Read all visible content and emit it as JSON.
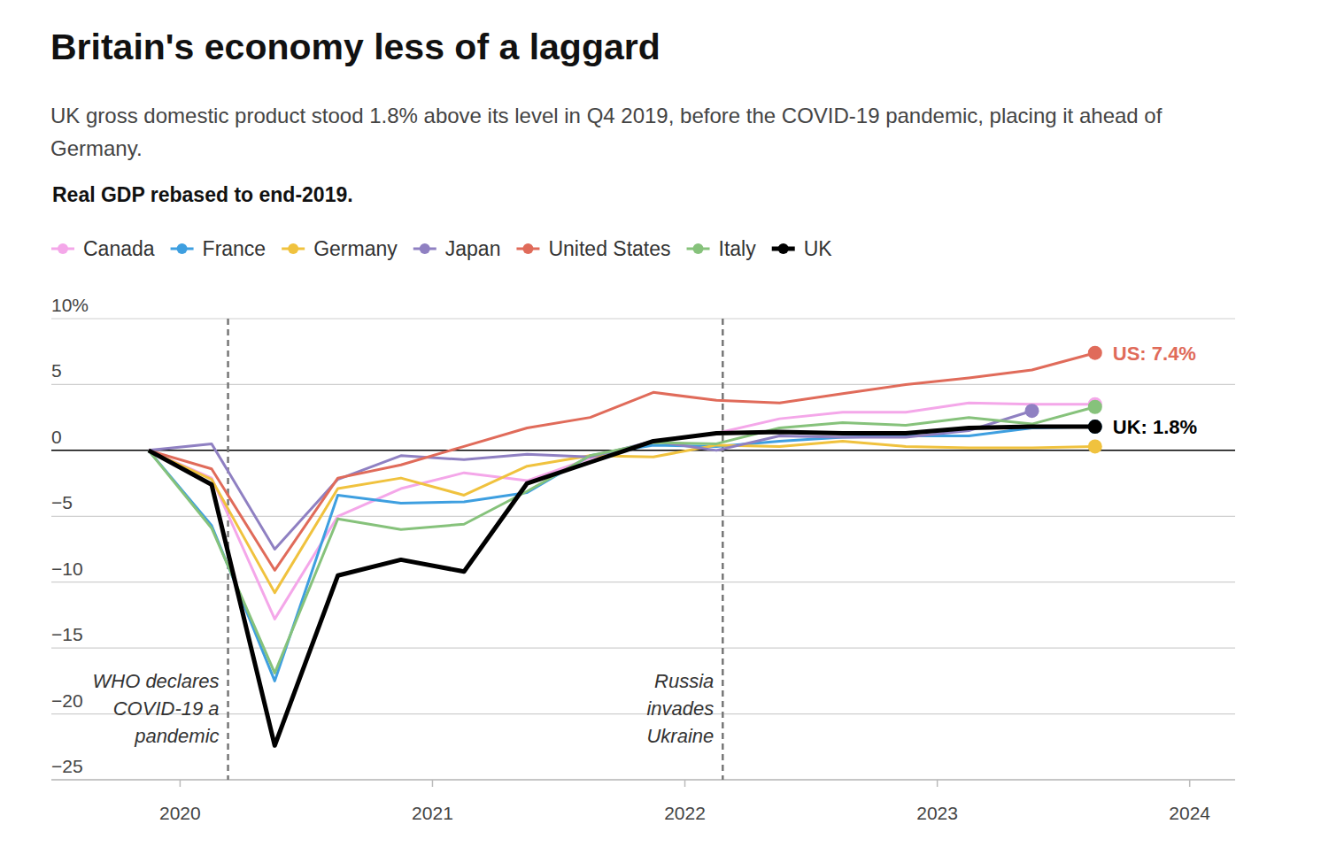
{
  "chart_data": {
    "type": "line",
    "title": "Britain's economy less of a laggard",
    "subtitle": "UK gross domestic product stood 1.8% above its level in Q4 2019, before the COVID-19 pandemic, placing it ahead of Germany.",
    "y_label": "Real GDP rebased to end-2019.",
    "x": [
      2019.875,
      2020.125,
      2020.375,
      2020.625,
      2020.875,
      2021.125,
      2021.375,
      2021.625,
      2021.875,
      2022.125,
      2022.375,
      2022.625,
      2022.875,
      2023.125,
      2023.375,
      2023.625
    ],
    "xlim": [
      2019.49,
      2024.18
    ],
    "xticks": [
      2020,
      2021,
      2022,
      2023,
      2024
    ],
    "ylim": [
      -25,
      10
    ],
    "yticks": [
      {
        "value": -25,
        "label": "−25"
      },
      {
        "value": -20,
        "label": "−20"
      },
      {
        "value": -15,
        "label": "−15"
      },
      {
        "value": -10,
        "label": "−10"
      },
      {
        "value": -5,
        "label": "−5"
      },
      0,
      5,
      {
        "value": 10,
        "label": "10%"
      }
    ],
    "grid": true,
    "legend": "top-left",
    "series": [
      {
        "name": "Canada",
        "color": "#f4a7e9",
        "line_style": "solid",
        "values": [
          0,
          -2.1,
          -12.8,
          -5.0,
          -2.9,
          -1.7,
          -2.3,
          -0.6,
          0.7,
          1.3,
          2.4,
          2.9,
          2.9,
          3.6,
          3.5,
          3.5
        ]
      },
      {
        "name": "France",
        "color": "#3e9fe0",
        "line_style": "solid",
        "values": [
          0,
          -5.7,
          -17.5,
          -3.4,
          -4.0,
          -3.9,
          -3.2,
          -0.4,
          0.4,
          0.3,
          0.7,
          1.0,
          1.1,
          1.1,
          1.7,
          1.8
        ]
      },
      {
        "name": "Germany",
        "color": "#f0c23e",
        "line_style": "solid",
        "values": [
          0,
          -2.2,
          -10.8,
          -2.9,
          -2.1,
          -3.4,
          -1.2,
          -0.4,
          -0.5,
          0.4,
          0.3,
          0.7,
          0.3,
          0.2,
          0.2,
          0.3
        ]
      },
      {
        "name": "Japan",
        "color": "#8f80c2",
        "line_style": "solid",
        "values": [
          0,
          0.5,
          -7.5,
          -2.2,
          -0.4,
          -0.7,
          -0.3,
          -0.5,
          0.7,
          0.0,
          1.1,
          1.0,
          1.0,
          1.5,
          3.0,
          null
        ]
      },
      {
        "name": "United States",
        "color": "#e06b5a",
        "line_style": "solid",
        "values": [
          0,
          -1.4,
          -9.1,
          -2.1,
          -1.1,
          0.3,
          1.7,
          2.5,
          4.4,
          3.8,
          3.6,
          4.3,
          5.0,
          5.5,
          6.1,
          7.4
        ],
        "value_labels": [
          null,
          null,
          null,
          null,
          null,
          null,
          null,
          null,
          null,
          null,
          null,
          null,
          null,
          null,
          null,
          "US: 7.4%"
        ]
      },
      {
        "name": "Italy",
        "color": "#86c27b",
        "line_style": "solid",
        "values": [
          0,
          -5.9,
          -16.9,
          -5.2,
          -6.0,
          -5.6,
          -3.1,
          -0.4,
          0.6,
          0.5,
          1.7,
          2.1,
          1.9,
          2.5,
          2.0,
          3.3
        ]
      },
      {
        "name": "UK",
        "color": "#000000",
        "line_style": "bold",
        "values": [
          0,
          -2.6,
          -22.4,
          -9.5,
          -8.3,
          -9.2,
          -2.5,
          -0.9,
          0.7,
          1.3,
          1.4,
          1.3,
          1.3,
          1.7,
          1.8,
          1.8
        ],
        "value_labels": [
          null,
          null,
          null,
          null,
          null,
          null,
          null,
          null,
          null,
          null,
          null,
          null,
          null,
          null,
          null,
          "UK: 1.8%"
        ]
      }
    ],
    "annotations": [
      {
        "x": 2020.19,
        "label": [
          "WHO declares",
          "COVID-19 a",
          "pandemic"
        ]
      },
      {
        "x": 2022.15,
        "label": [
          "Russia",
          "invades",
          "Ukraine"
        ]
      }
    ]
  }
}
